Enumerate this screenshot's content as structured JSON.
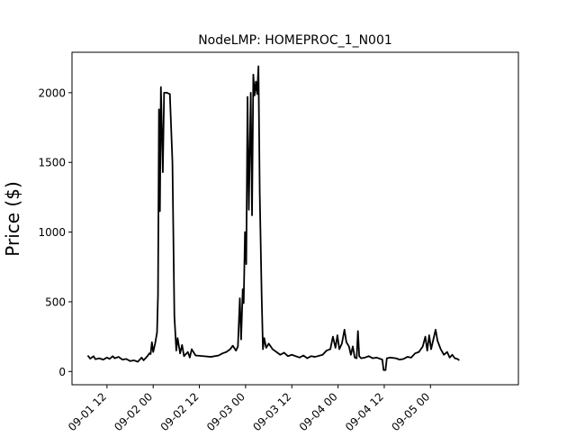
{
  "chart_data": {
    "type": "line",
    "title": "NodeLMP: HOMEPROC_1_N001",
    "xlabel": "",
    "ylabel": "Price ($)",
    "x_tick_labels": [
      "09-01 12",
      "09-02 00",
      "09-02 12",
      "09-03 00",
      "09-03 12",
      "09-04 00",
      "09-04 12",
      "09-05 00"
    ],
    "y_ticks": [
      0,
      500,
      1000,
      1500,
      2000
    ],
    "xlim": [
      "2017-09-01 02:55",
      "2017-09-05 22:50"
    ],
    "ylim": [
      -95,
      2290
    ],
    "grid": false,
    "line_color": "#000000",
    "series": [
      {
        "name": "",
        "points": [
          [
            "2017-09-01 07:00",
            115
          ],
          [
            "2017-09-01 07:40",
            92
          ],
          [
            "2017-09-01 08:30",
            110
          ],
          [
            "2017-09-01 09:00",
            88
          ],
          [
            "2017-09-01 10:00",
            95
          ],
          [
            "2017-09-01 11:00",
            85
          ],
          [
            "2017-09-01 12:00",
            100
          ],
          [
            "2017-09-01 12:40",
            90
          ],
          [
            "2017-09-01 13:30",
            110
          ],
          [
            "2017-09-01 14:00",
            95
          ],
          [
            "2017-09-01 15:00",
            105
          ],
          [
            "2017-09-01 16:00",
            85
          ],
          [
            "2017-09-01 17:00",
            90
          ],
          [
            "2017-09-01 18:00",
            75
          ],
          [
            "2017-09-01 19:00",
            80
          ],
          [
            "2017-09-01 20:00",
            70
          ],
          [
            "2017-09-01 21:00",
            100
          ],
          [
            "2017-09-01 21:30",
            80
          ],
          [
            "2017-09-01 22:30",
            110
          ],
          [
            "2017-09-01 23:00",
            130
          ],
          [
            "2017-09-01 23:20",
            125
          ],
          [
            "2017-09-01 23:40",
            210
          ],
          [
            "2017-09-02 00:00",
            140
          ],
          [
            "2017-09-02 00:30",
            200
          ],
          [
            "2017-09-02 01:00",
            280
          ],
          [
            "2017-09-02 01:15",
            550
          ],
          [
            "2017-09-02 01:30",
            1880
          ],
          [
            "2017-09-02 01:45",
            1150
          ],
          [
            "2017-09-02 02:00",
            2040
          ],
          [
            "2017-09-02 02:30",
            1430
          ],
          [
            "2017-09-02 02:50",
            2000
          ],
          [
            "2017-09-02 03:30",
            2000
          ],
          [
            "2017-09-02 04:20",
            1990
          ],
          [
            "2017-09-02 05:00",
            1500
          ],
          [
            "2017-09-02 05:30",
            400
          ],
          [
            "2017-09-02 06:00",
            150
          ],
          [
            "2017-09-02 06:20",
            240
          ],
          [
            "2017-09-02 07:00",
            130
          ],
          [
            "2017-09-02 07:30",
            190
          ],
          [
            "2017-09-02 08:00",
            110
          ],
          [
            "2017-09-02 09:00",
            140
          ],
          [
            "2017-09-02 09:30",
            100
          ],
          [
            "2017-09-02 10:00",
            160
          ],
          [
            "2017-09-02 11:00",
            115
          ],
          [
            "2017-09-02 13:00",
            110
          ],
          [
            "2017-09-02 15:00",
            105
          ],
          [
            "2017-09-02 17:00",
            115
          ],
          [
            "2017-09-02 18:00",
            130
          ],
          [
            "2017-09-02 19:00",
            140
          ],
          [
            "2017-09-02 20:00",
            160
          ],
          [
            "2017-09-02 20:40",
            185
          ],
          [
            "2017-09-02 21:30",
            150
          ],
          [
            "2017-09-02 22:00",
            180
          ],
          [
            "2017-09-02 22:30",
            525
          ],
          [
            "2017-09-02 22:50",
            230
          ],
          [
            "2017-09-02 23:15",
            590
          ],
          [
            "2017-09-02 23:30",
            490
          ],
          [
            "2017-09-02 23:50",
            1000
          ],
          [
            "2017-09-03 00:10",
            770
          ],
          [
            "2017-09-03 00:30",
            1970
          ],
          [
            "2017-09-03 00:50",
            1160
          ],
          [
            "2017-09-03 01:20",
            2000
          ],
          [
            "2017-09-03 01:40",
            1120
          ],
          [
            "2017-09-03 02:00",
            2130
          ],
          [
            "2017-09-03 02:20",
            1980
          ],
          [
            "2017-09-03 02:40",
            2080
          ],
          [
            "2017-09-03 03:00",
            1990
          ],
          [
            "2017-09-03 03:20",
            2190
          ],
          [
            "2017-09-03 03:40",
            1280
          ],
          [
            "2017-09-03 04:10",
            540
          ],
          [
            "2017-09-03 04:30",
            160
          ],
          [
            "2017-09-03 04:50",
            240
          ],
          [
            "2017-09-03 05:20",
            170
          ],
          [
            "2017-09-03 06:00",
            200
          ],
          [
            "2017-09-03 07:00",
            160
          ],
          [
            "2017-09-03 08:00",
            140
          ],
          [
            "2017-09-03 09:00",
            120
          ],
          [
            "2017-09-03 10:00",
            135
          ],
          [
            "2017-09-03 11:00",
            110
          ],
          [
            "2017-09-03 12:00",
            120
          ],
          [
            "2017-09-03 14:00",
            100
          ],
          [
            "2017-09-03 15:00",
            115
          ],
          [
            "2017-09-03 16:00",
            95
          ],
          [
            "2017-09-03 17:00",
            110
          ],
          [
            "2017-09-03 18:00",
            105
          ],
          [
            "2017-09-03 20:00",
            120
          ],
          [
            "2017-09-03 21:00",
            150
          ],
          [
            "2017-09-03 22:00",
            160
          ],
          [
            "2017-09-03 22:40",
            250
          ],
          [
            "2017-09-03 23:20",
            170
          ],
          [
            "2017-09-03 23:50",
            260
          ],
          [
            "2017-09-04 00:20",
            160
          ],
          [
            "2017-09-04 01:00",
            200
          ],
          [
            "2017-09-04 01:40",
            300
          ],
          [
            "2017-09-04 02:10",
            210
          ],
          [
            "2017-09-04 02:50",
            180
          ],
          [
            "2017-09-04 03:20",
            120
          ],
          [
            "2017-09-04 03:50",
            180
          ],
          [
            "2017-09-04 04:20",
            100
          ],
          [
            "2017-09-04 04:50",
            95
          ],
          [
            "2017-09-04 05:10",
            290
          ],
          [
            "2017-09-04 05:30",
            110
          ],
          [
            "2017-09-04 06:00",
            95
          ],
          [
            "2017-09-04 07:00",
            100
          ],
          [
            "2017-09-04 08:00",
            110
          ],
          [
            "2017-09-04 09:00",
            95
          ],
          [
            "2017-09-04 10:00",
            100
          ],
          [
            "2017-09-04 11:30",
            85
          ],
          [
            "2017-09-04 11:50",
            10
          ],
          [
            "2017-09-04 12:20",
            10
          ],
          [
            "2017-09-04 12:40",
            95
          ],
          [
            "2017-09-04 13:30",
            100
          ],
          [
            "2017-09-04 15:00",
            95
          ],
          [
            "2017-09-04 16:00",
            85
          ],
          [
            "2017-09-04 17:00",
            90
          ],
          [
            "2017-09-04 18:00",
            105
          ],
          [
            "2017-09-04 19:00",
            100
          ],
          [
            "2017-09-04 20:00",
            130
          ],
          [
            "2017-09-04 21:00",
            140
          ],
          [
            "2017-09-04 22:00",
            180
          ],
          [
            "2017-09-04 22:40",
            250
          ],
          [
            "2017-09-04 23:10",
            150
          ],
          [
            "2017-09-04 23:40",
            260
          ],
          [
            "2017-09-05 00:10",
            160
          ],
          [
            "2017-09-05 00:40",
            220
          ],
          [
            "2017-09-05 01:20",
            300
          ],
          [
            "2017-09-05 01:50",
            220
          ],
          [
            "2017-09-05 02:40",
            160
          ],
          [
            "2017-09-05 03:30",
            120
          ],
          [
            "2017-09-05 04:20",
            140
          ],
          [
            "2017-09-05 05:00",
            100
          ],
          [
            "2017-09-05 05:40",
            120
          ],
          [
            "2017-09-05 06:20",
            95
          ],
          [
            "2017-09-05 07:00",
            90
          ],
          [
            "2017-09-05 07:30",
            80
          ]
        ]
      }
    ]
  }
}
